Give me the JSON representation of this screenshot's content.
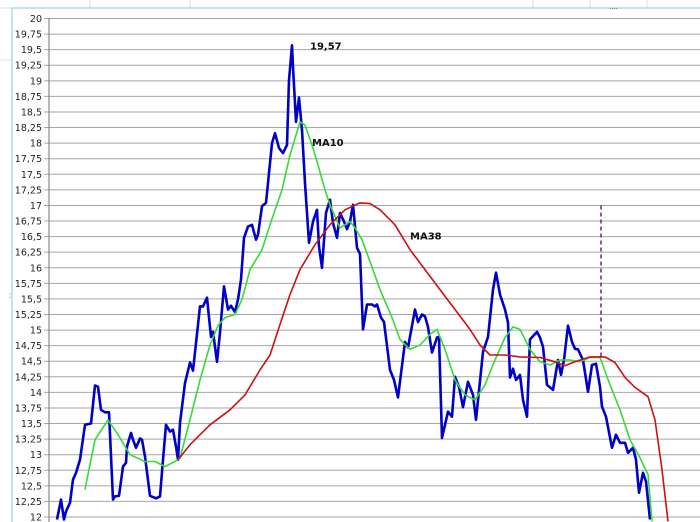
{
  "chart_data": {
    "type": "line",
    "title": "",
    "xlabel": "",
    "ylabel": "",
    "ylim": [
      12,
      20
    ],
    "xlim": [
      0,
      651
    ],
    "grid": true,
    "legend": "none",
    "y_ticks": [
      "12",
      "12,25",
      "12,5",
      "12,75",
      "13",
      "13,25",
      "13,5",
      "13,75",
      "14",
      "14,25",
      "14,5",
      "14,75",
      "15",
      "15,25",
      "15,5",
      "15,75",
      "16",
      "16,25",
      "16,5",
      "16,75",
      "17",
      "17,25",
      "17,5",
      "17,75",
      "18",
      "18,25",
      "18,5",
      "18,75",
      "19",
      "19,25",
      "19,5",
      "19,75",
      "20"
    ],
    "series": [
      {
        "color": "#0000c8",
        "x": [
          8,
          12,
          15,
          17,
          21,
          24,
          27,
          31,
          36,
          42,
          46,
          49,
          52,
          56,
          60,
          64,
          66,
          70,
          74,
          77,
          78,
          82,
          84,
          87,
          91,
          93,
          96,
          101,
          107,
          111,
          114,
          117,
          121,
          124,
          127,
          129,
          131,
          136,
          141,
          144,
          151,
          154,
          158,
          162,
          164,
          168,
          171,
          175,
          179,
          182,
          186,
          189,
          192,
          195,
          199,
          203,
          207,
          209,
          213,
          217,
          223,
          226,
          230,
          234,
          238,
          240,
          243,
          244,
          247,
          250,
          253,
          256,
          260,
          264,
          268,
          270,
          273,
          277,
          281,
          284,
          288,
          291,
          295,
          298,
          301,
          304,
          308,
          311,
          314,
          318,
          323,
          326,
          328,
          332,
          335,
          341,
          345,
          349,
          356,
          359,
          366,
          369,
          373,
          376,
          379,
          383,
          388,
          390,
          393,
          399,
          403,
          406,
          410,
          414,
          419,
          424,
          427,
          434,
          439,
          444,
          447,
          451,
          456,
          459,
          461,
          464,
          467,
          471,
          474,
          478,
          481,
          488,
          491,
          494,
          498,
          504,
          509,
          512,
          515,
          519,
          523,
          526,
          529,
          534,
          539,
          543,
          547,
          551,
          553,
          557,
          563,
          567,
          571,
          576,
          579,
          584,
          587,
          590,
          594,
          597,
          601
        ],
        "values": [
          11.96,
          12.28,
          11.96,
          12.09,
          12.23,
          12.6,
          12.71,
          12.92,
          13.48,
          13.5,
          14.11,
          14.09,
          13.72,
          13.68,
          13.68,
          12.28,
          12.33,
          12.34,
          12.81,
          12.87,
          13.13,
          13.35,
          13.24,
          13.11,
          13.26,
          13.24,
          12.97,
          12.34,
          12.3,
          12.33,
          12.92,
          13.48,
          13.37,
          13.4,
          13.13,
          12.92,
          13.51,
          14.15,
          14.48,
          14.35,
          15.38,
          15.38,
          15.52,
          14.89,
          14.97,
          14.49,
          14.96,
          15.7,
          15.33,
          15.39,
          15.29,
          15.49,
          15.81,
          16.48,
          16.66,
          16.69,
          16.45,
          16.53,
          16.99,
          17.04,
          18.0,
          18.16,
          17.92,
          17.84,
          17.97,
          19.01,
          19.57,
          19.22,
          18.34,
          18.73,
          18.21,
          17.36,
          16.4,
          16.74,
          16.93,
          16.34,
          16.0,
          16.88,
          17.09,
          16.72,
          16.48,
          16.88,
          16.74,
          16.62,
          16.74,
          17.01,
          16.32,
          16.22,
          15.01,
          15.41,
          15.41,
          15.38,
          15.41,
          15.2,
          15.13,
          14.36,
          14.2,
          13.92,
          14.81,
          14.72,
          15.33,
          15.13,
          15.25,
          15.22,
          15.05,
          14.64,
          14.88,
          14.89,
          13.27,
          13.69,
          13.61,
          14.25,
          14.09,
          13.76,
          14.17,
          13.96,
          13.56,
          14.65,
          14.89,
          15.65,
          15.92,
          15.57,
          15.33,
          15.12,
          14.24,
          14.38,
          14.2,
          14.28,
          13.88,
          13.61,
          14.85,
          14.97,
          14.88,
          14.73,
          14.12,
          14.04,
          14.52,
          14.28,
          14.52,
          15.07,
          14.81,
          14.7,
          14.69,
          14.52,
          14.01,
          14.44,
          14.46,
          14.09,
          13.77,
          13.61,
          13.11,
          13.32,
          13.19,
          13.19,
          13.03,
          13.11,
          12.92,
          12.39,
          12.71,
          12.57,
          11.96
        ]
      },
      {
        "name": "MA10",
        "color": "#33dd33",
        "x": [
          36,
          46,
          59,
          69,
          81,
          96,
          106,
          116,
          126,
          131,
          141,
          151,
          161,
          169,
          176,
          186,
          193,
          201,
          213,
          221,
          233,
          241,
          251,
          256,
          263,
          269,
          276,
          281,
          291,
          301,
          306,
          313,
          321,
          331,
          343,
          351,
          361,
          371,
          381,
          388,
          396,
          406,
          416,
          426,
          436,
          446,
          456,
          464,
          471,
          481,
          491,
          501,
          511,
          521,
          531,
          541,
          551,
          561,
          571,
          581,
          591,
          599,
          603
        ],
        "values": [
          12.44,
          13.24,
          13.56,
          13.32,
          13.0,
          12.89,
          12.89,
          12.81,
          12.89,
          12.95,
          13.56,
          14.2,
          14.76,
          15.07,
          15.2,
          15.25,
          15.49,
          15.97,
          16.29,
          16.69,
          17.25,
          17.81,
          18.34,
          18.29,
          17.97,
          17.65,
          17.25,
          17.01,
          16.64,
          16.74,
          16.64,
          16.45,
          16.1,
          15.65,
          15.2,
          14.85,
          14.69,
          14.76,
          14.93,
          15.01,
          14.69,
          14.2,
          13.96,
          13.88,
          14.12,
          14.52,
          14.88,
          15.05,
          15.01,
          14.69,
          14.49,
          14.44,
          14.52,
          14.52,
          14.49,
          14.56,
          14.56,
          14.12,
          13.72,
          13.24,
          12.95,
          12.68,
          11.93
        ]
      },
      {
        "name": "MA38",
        "color": "#cc1111",
        "x": [
          129,
          141,
          161,
          181,
          196,
          211,
          221,
          231,
          241,
          251,
          266,
          281,
          296,
          311,
          321,
          331,
          346,
          361,
          376,
          391,
          406,
          421,
          431,
          441,
          456,
          471,
          491,
          506,
          516,
          526,
          541,
          556,
          566,
          576,
          586,
          599,
          606,
          613,
          619
        ],
        "values": [
          12.92,
          13.16,
          13.48,
          13.72,
          13.96,
          14.36,
          14.6,
          15.09,
          15.57,
          15.97,
          16.37,
          16.69,
          16.93,
          17.04,
          17.03,
          16.93,
          16.69,
          16.29,
          15.97,
          15.65,
          15.33,
          15.01,
          14.76,
          14.6,
          14.6,
          14.57,
          14.56,
          14.49,
          14.43,
          14.49,
          14.57,
          14.57,
          14.48,
          14.24,
          14.08,
          13.93,
          13.56,
          12.76,
          11.93
        ]
      }
    ],
    "annotations": [
      {
        "text": "19,57",
        "x": 261,
        "y": 19.5
      },
      {
        "text": "MA10",
        "x": 263,
        "y": 17.95
      },
      {
        "text": "MA38",
        "x": 361,
        "y": 16.45
      }
    ],
    "marker_line": {
      "x": 552,
      "y_from": 17.0,
      "y_to": 14.55,
      "color": "#7a1a8a",
      "style": "dashed"
    }
  }
}
